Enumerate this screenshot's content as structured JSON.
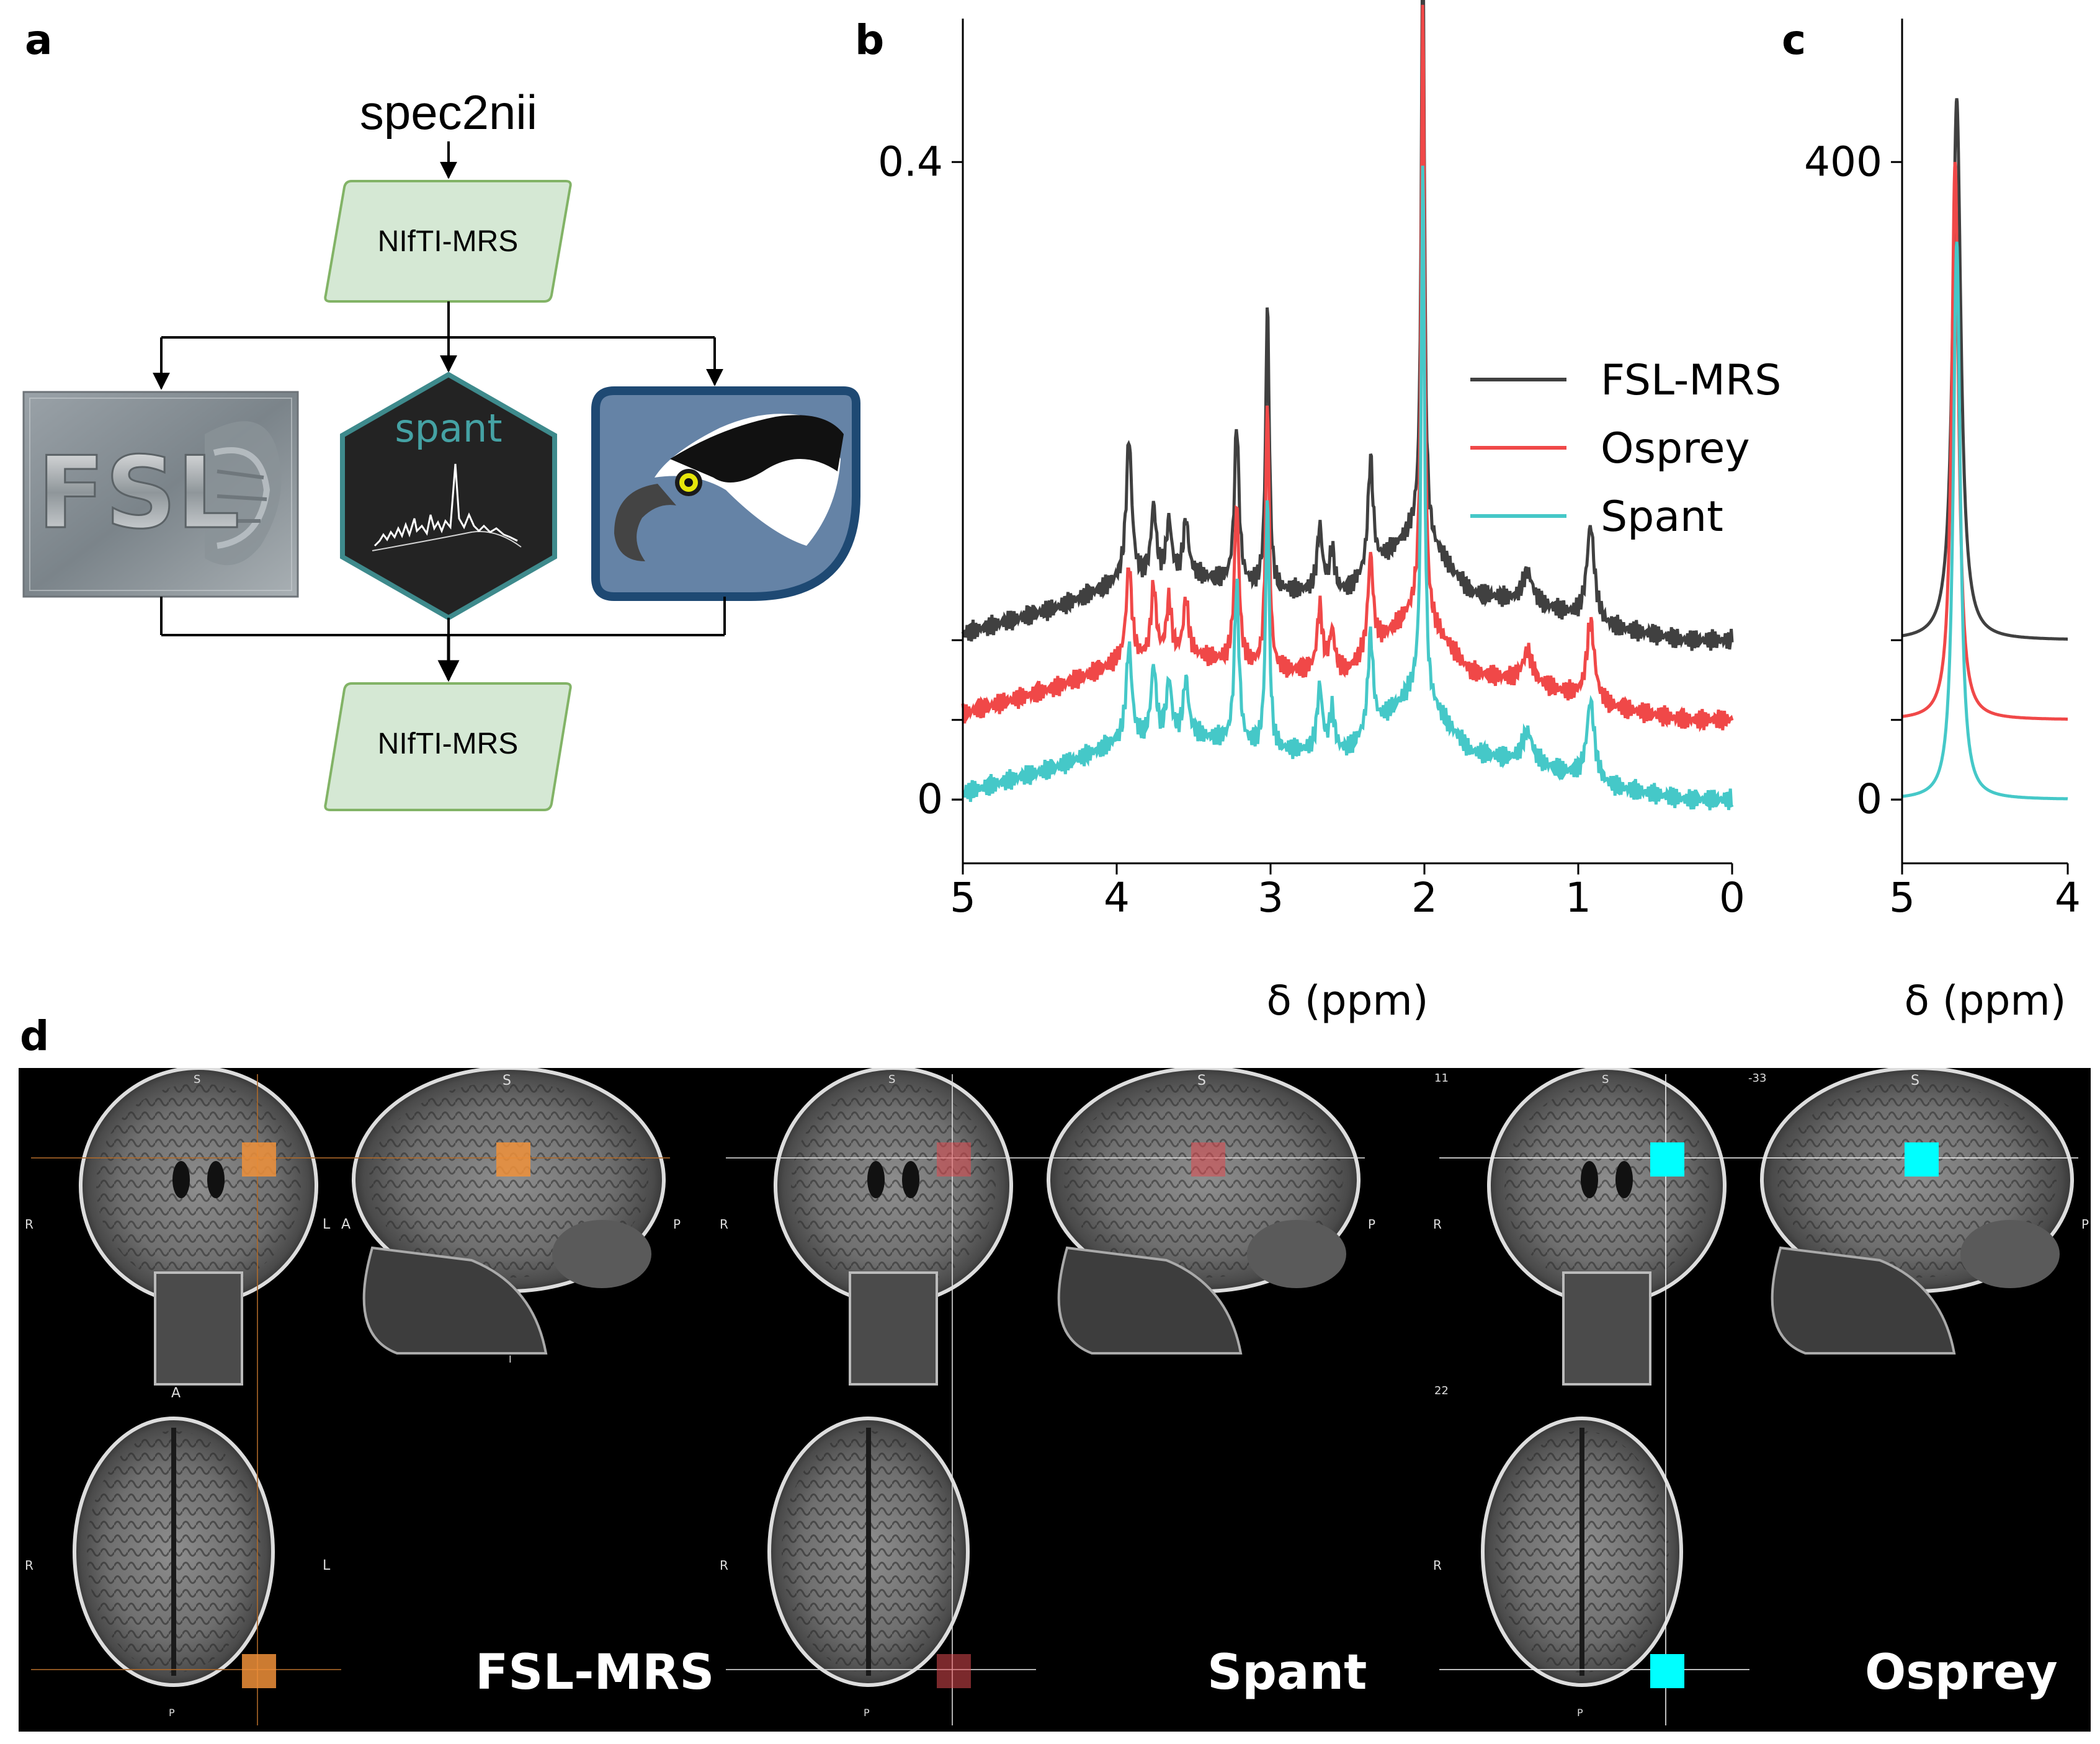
{
  "panels": {
    "a": "a",
    "b": "b",
    "c": "c",
    "d": "d"
  },
  "flowchart": {
    "source": "spec2nii",
    "box_top": "NIfTI-MRS",
    "box_bottom": "NIfTI-MRS",
    "tools": [
      {
        "name": "FSL",
        "icon": "fsl-trilobite-logo"
      },
      {
        "name": "spant",
        "icon": "spant-hexagon-logo"
      },
      {
        "name": "Osprey",
        "icon": "osprey-bird-logo"
      }
    ],
    "colors": {
      "box_fill": "#d5e8d4",
      "box_stroke": "#82b366"
    }
  },
  "chart_data": [
    {
      "type": "line",
      "panel": "b",
      "xlabel": "δ (ppm)",
      "xlim": [
        5,
        0
      ],
      "x_ticks": [
        "5",
        "4",
        "3",
        "2",
        "1",
        "0"
      ],
      "y_ticks": [
        "0",
        "0.4"
      ],
      "ylim": [
        -0.04,
        0.49
      ],
      "legend": "center-right",
      "series": [
        {
          "name": "FSL-MRS",
          "color": "#404040",
          "offset": 0.1,
          "baseline": [
            [
              5.0,
              0.004
            ],
            [
              4.4,
              0.02
            ],
            [
              4.0,
              0.035
            ],
            [
              3.5,
              0.04
            ],
            [
              3.0,
              0.03
            ],
            [
              2.5,
              0.03
            ],
            [
              2.05,
              0.07
            ],
            [
              1.7,
              0.03
            ],
            [
              1.2,
              0.02
            ],
            [
              0.8,
              0.008
            ],
            [
              0.3,
              0.0
            ],
            [
              0.0,
              0.0
            ]
          ],
          "peaks": [
            [
              3.92,
              0.09,
              0.022
            ],
            [
              3.76,
              0.045,
              0.02
            ],
            [
              3.66,
              0.035,
              0.02
            ],
            [
              3.55,
              0.035,
              0.02
            ],
            [
              3.22,
              0.1,
              0.018
            ],
            [
              3.02,
              0.18,
              0.014
            ],
            [
              2.68,
              0.04,
              0.02
            ],
            [
              2.6,
              0.025,
              0.02
            ],
            [
              2.35,
              0.07,
              0.02
            ],
            [
              2.01,
              0.39,
              0.012
            ],
            [
              1.33,
              0.02,
              0.04
            ],
            [
              0.92,
              0.06,
              0.03
            ]
          ]
        },
        {
          "name": "Osprey",
          "color": "#f04848",
          "offset": 0.05,
          "baseline": [
            [
              5.0,
              0.004
            ],
            [
              4.4,
              0.02
            ],
            [
              4.0,
              0.035
            ],
            [
              3.5,
              0.04
            ],
            [
              3.0,
              0.03
            ],
            [
              2.5,
              0.03
            ],
            [
              2.05,
              0.07
            ],
            [
              1.7,
              0.03
            ],
            [
              1.2,
              0.02
            ],
            [
              0.8,
              0.008
            ],
            [
              0.3,
              0.0
            ],
            [
              0.0,
              0.0
            ]
          ],
          "peaks": [
            [
              3.92,
              0.06,
              0.022
            ],
            [
              3.76,
              0.045,
              0.02
            ],
            [
              3.66,
              0.035,
              0.02
            ],
            [
              3.55,
              0.035,
              0.02
            ],
            [
              3.22,
              0.1,
              0.018
            ],
            [
              3.02,
              0.17,
              0.014
            ],
            [
              2.68,
              0.04,
              0.02
            ],
            [
              2.6,
              0.025,
              0.02
            ],
            [
              2.35,
              0.06,
              0.02
            ],
            [
              2.01,
              0.39,
              0.012
            ],
            [
              1.33,
              0.02,
              0.04
            ],
            [
              0.92,
              0.05,
              0.03
            ]
          ]
        },
        {
          "name": "Spant",
          "color": "#45c8c8",
          "offset": 0.0,
          "baseline": [
            [
              5.0,
              0.004
            ],
            [
              4.4,
              0.02
            ],
            [
              4.0,
              0.035
            ],
            [
              3.5,
              0.04
            ],
            [
              3.0,
              0.03
            ],
            [
              2.5,
              0.03
            ],
            [
              2.05,
              0.07
            ],
            [
              1.7,
              0.03
            ],
            [
              1.2,
              0.02
            ],
            [
              0.8,
              0.008
            ],
            [
              0.3,
              0.0
            ],
            [
              0.0,
              0.0
            ]
          ],
          "peaks": [
            [
              3.92,
              0.06,
              0.022
            ],
            [
              3.76,
              0.045,
              0.02
            ],
            [
              3.66,
              0.035,
              0.02
            ],
            [
              3.55,
              0.035,
              0.02
            ],
            [
              3.22,
              0.1,
              0.018
            ],
            [
              3.02,
              0.16,
              0.014
            ],
            [
              2.68,
              0.04,
              0.02
            ],
            [
              2.6,
              0.025,
              0.02
            ],
            [
              2.35,
              0.06,
              0.02
            ],
            [
              2.01,
              0.34,
              0.012
            ],
            [
              1.33,
              0.02,
              0.04
            ],
            [
              0.92,
              0.05,
              0.03
            ]
          ]
        }
      ]
    },
    {
      "type": "line",
      "panel": "c",
      "xlabel": "δ (ppm)",
      "xlim": [
        5,
        4
      ],
      "x_ticks": [
        "5",
        "4"
      ],
      "y_ticks": [
        "0",
        "400"
      ],
      "ylim": [
        -40,
        490
      ],
      "series": [
        {
          "name": "FSL-MRS",
          "color": "#404040",
          "offset": 100,
          "center": 4.67,
          "amplitude": 340,
          "width": 0.03
        },
        {
          "name": "Osprey",
          "color": "#f04848",
          "offset": 50,
          "center": 4.68,
          "amplitude": 350,
          "width": 0.025
        },
        {
          "name": "Spant",
          "color": "#45c8c8",
          "offset": 0,
          "center": 4.67,
          "amplitude": 350,
          "width": 0.025
        }
      ]
    }
  ],
  "mri": {
    "labels": [
      "FSL-MRS",
      "Spant",
      "Osprey"
    ],
    "voxel_colors": [
      "#f0903a",
      "#e04b50",
      "#00ffff"
    ],
    "orientation": {
      "S": "S",
      "R": "R",
      "L": "L",
      "A": "A",
      "P": "P",
      "I": "I"
    },
    "coords": {
      "top_left": "11",
      "top_right": "-33",
      "axial": "22"
    }
  }
}
